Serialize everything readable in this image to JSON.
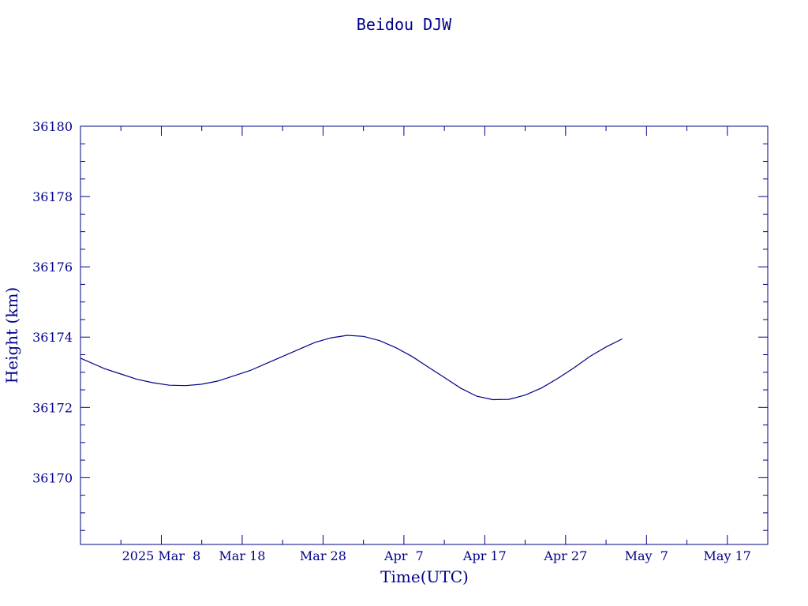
{
  "chart_data": {
    "type": "line",
    "title": "Beidou DJW",
    "xlabel": "Time(UTC)",
    "ylabel": "Height (km)",
    "x_tick_labels": [
      "2025 Mar  8",
      "Mar 18",
      "Mar 28",
      "Apr  7",
      "Apr 17",
      "Apr 27",
      "May  7",
      "May 17"
    ],
    "y_tick_labels": [
      "36170",
      "36172",
      "36174",
      "36176",
      "36178",
      "36180"
    ],
    "xlim": [
      "2025-02-26",
      "2025-05-22"
    ],
    "ylim": [
      36168.1,
      36180
    ],
    "grid": false,
    "line_color": "#00008b",
    "series": [
      {
        "x": [
          "2025-02-26",
          "2025-03-01",
          "2025-03-03",
          "2025-03-05",
          "2025-03-07",
          "2025-03-09",
          "2025-03-11",
          "2025-03-13",
          "2025-03-15",
          "2025-03-17",
          "2025-03-19",
          "2025-03-21",
          "2025-03-23",
          "2025-03-25",
          "2025-03-27",
          "2025-03-29",
          "2025-03-31",
          "2025-04-02",
          "2025-04-04",
          "2025-04-06",
          "2025-04-08",
          "2025-04-10",
          "2025-04-12",
          "2025-04-14",
          "2025-04-16",
          "2025-04-18",
          "2025-04-20",
          "2025-04-22",
          "2025-04-24",
          "2025-04-26",
          "2025-04-28",
          "2025-04-30",
          "2025-05-02",
          "2025-05-04"
        ],
        "y": [
          36173.4,
          36173.1,
          36172.95,
          36172.8,
          36172.7,
          36172.63,
          36172.62,
          36172.66,
          36172.75,
          36172.9,
          36173.05,
          36173.25,
          36173.45,
          36173.65,
          36173.85,
          36173.98,
          36174.05,
          36174.02,
          36173.9,
          36173.7,
          36173.45,
          36173.15,
          36172.85,
          36172.55,
          36172.32,
          36172.22,
          36172.23,
          36172.35,
          36172.55,
          36172.82,
          36173.12,
          36173.45,
          36173.72,
          36173.95
        ]
      }
    ]
  }
}
